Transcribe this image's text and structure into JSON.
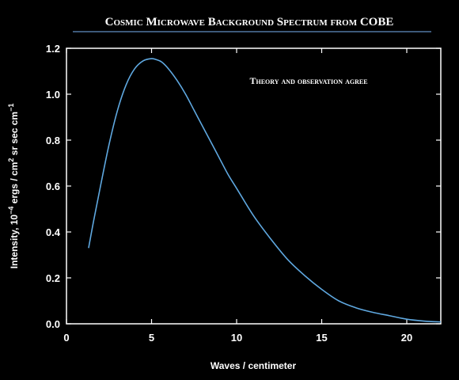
{
  "chart_data": {
    "type": "line",
    "title": "Cosmic Microwave Background Spectrum from COBE",
    "annotation": "Theory and observation agree",
    "xlabel": "Waves / centimeter",
    "ylabel": {
      "base": "Intensity, 10",
      "exp1": "−4",
      "mid": " ergs / cm",
      "exp2": "2",
      "tail": " sr sec cm",
      "exp3": "−1"
    },
    "xlim": [
      0,
      22
    ],
    "ylim": [
      0,
      1.2
    ],
    "x_ticks": [
      0,
      5,
      10,
      15,
      20
    ],
    "x_tick_labels": [
      "0",
      "5",
      "10",
      "15",
      "20"
    ],
    "y_ticks": [
      0,
      0.2,
      0.4,
      0.6,
      0.8,
      1.0,
      1.2
    ],
    "y_tick_labels": [
      "0.0",
      "0.2",
      "0.4",
      "0.6",
      "0.8",
      "1.0",
      "1.2"
    ],
    "grid": false,
    "series": [
      {
        "x": [
          1.3,
          1.6,
          2.0,
          2.5,
          3.0,
          3.5,
          4.0,
          4.5,
          5.0,
          5.3,
          5.6,
          6.0,
          6.5,
          7.0,
          7.5,
          8.0,
          8.5,
          9.0,
          9.5,
          10.0,
          11.0,
          12.0,
          13.0,
          14.0,
          15.0,
          16.0,
          17.0,
          18.0,
          19.0,
          20.0,
          21.0,
          22.0
        ],
        "y": [
          0.33,
          0.45,
          0.6,
          0.78,
          0.93,
          1.04,
          1.11,
          1.145,
          1.155,
          1.15,
          1.14,
          1.11,
          1.06,
          1.0,
          0.93,
          0.86,
          0.79,
          0.72,
          0.65,
          0.59,
          0.47,
          0.37,
          0.28,
          0.21,
          0.15,
          0.1,
          0.07,
          0.05,
          0.035,
          0.02,
          0.012,
          0.008
        ]
      }
    ]
  },
  "colors": {
    "background": "#000000",
    "axes": "#ffffff",
    "curve": "#5fa8e0",
    "title_rule": "#5f8ec4",
    "text": "#ffffff"
  }
}
